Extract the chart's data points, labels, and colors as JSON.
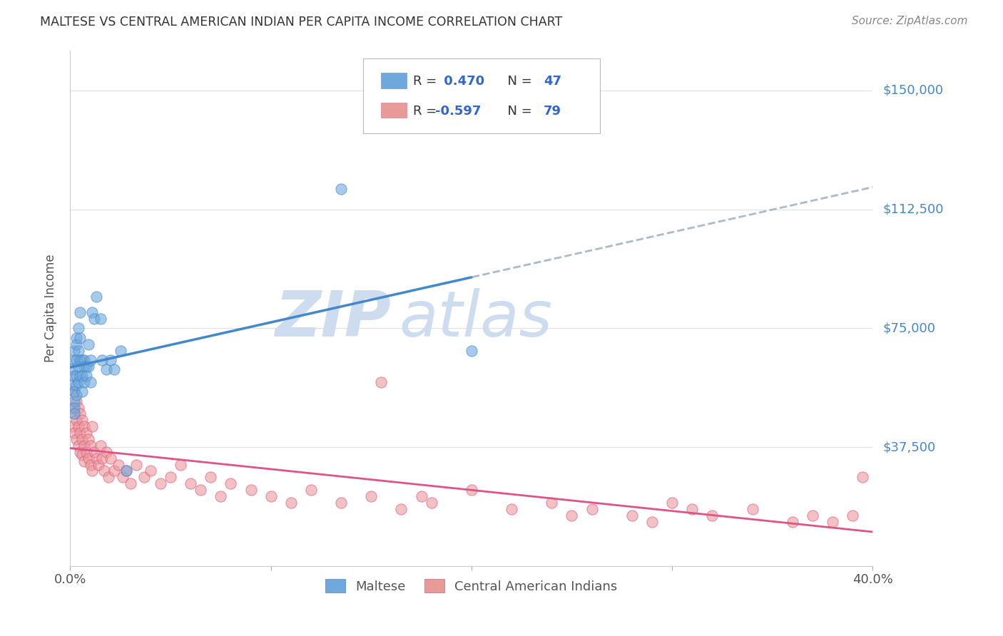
{
  "title": "MALTESE VS CENTRAL AMERICAN INDIAN PER CAPITA INCOME CORRELATION CHART",
  "source": "Source: ZipAtlas.com",
  "ylabel": "Per Capita Income",
  "xlim": [
    0.0,
    0.4
  ],
  "ylim": [
    0,
    162500
  ],
  "yticks": [
    0,
    37500,
    75000,
    112500,
    150000
  ],
  "ytick_labels": [
    "",
    "$37,500",
    "$75,000",
    "$112,500",
    "$150,000"
  ],
  "blue_color": "#6fa8dc",
  "pink_color": "#ea9999",
  "blue_line_color": "#4488cc",
  "pink_line_color": "#dd5588",
  "dashed_line_color": "#aabbcc",
  "background_color": "#ffffff",
  "grid_color": "#e0e0e0",
  "watermark_color": "#cddcee",
  "maltese_x": [
    0.001,
    0.001,
    0.002,
    0.002,
    0.002,
    0.002,
    0.002,
    0.002,
    0.002,
    0.003,
    0.003,
    0.003,
    0.003,
    0.003,
    0.003,
    0.004,
    0.004,
    0.004,
    0.004,
    0.005,
    0.005,
    0.005,
    0.005,
    0.006,
    0.006,
    0.006,
    0.007,
    0.007,
    0.007,
    0.008,
    0.008,
    0.009,
    0.009,
    0.01,
    0.01,
    0.011,
    0.012,
    0.013,
    0.015,
    0.016,
    0.018,
    0.02,
    0.022,
    0.025,
    0.028,
    0.135,
    0.2
  ],
  "maltese_y": [
    62000,
    57000,
    68000,
    65000,
    60000,
    55000,
    52000,
    50000,
    48000,
    72000,
    70000,
    65000,
    60000,
    57000,
    54000,
    75000,
    68000,
    63000,
    58000,
    80000,
    72000,
    65000,
    60000,
    65000,
    60000,
    55000,
    65000,
    63000,
    58000,
    63000,
    60000,
    70000,
    63000,
    65000,
    58000,
    80000,
    78000,
    85000,
    78000,
    65000,
    62000,
    65000,
    62000,
    68000,
    30000,
    119000,
    68000
  ],
  "cai_x": [
    0.001,
    0.001,
    0.002,
    0.002,
    0.002,
    0.003,
    0.003,
    0.003,
    0.004,
    0.004,
    0.004,
    0.005,
    0.005,
    0.005,
    0.006,
    0.006,
    0.006,
    0.007,
    0.007,
    0.007,
    0.008,
    0.008,
    0.009,
    0.009,
    0.01,
    0.01,
    0.011,
    0.011,
    0.012,
    0.013,
    0.014,
    0.015,
    0.016,
    0.017,
    0.018,
    0.019,
    0.02,
    0.022,
    0.024,
    0.026,
    0.028,
    0.03,
    0.033,
    0.037,
    0.04,
    0.045,
    0.05,
    0.055,
    0.06,
    0.065,
    0.07,
    0.075,
    0.08,
    0.09,
    0.1,
    0.11,
    0.12,
    0.135,
    0.15,
    0.165,
    0.18,
    0.2,
    0.22,
    0.24,
    0.26,
    0.28,
    0.3,
    0.32,
    0.34,
    0.36,
    0.37,
    0.38,
    0.39,
    0.175,
    0.155,
    0.25,
    0.29,
    0.31,
    0.395
  ],
  "cai_y": [
    50000,
    44000,
    55000,
    48000,
    42000,
    52000,
    46000,
    40000,
    50000,
    44000,
    38000,
    48000,
    42000,
    36000,
    46000,
    40000,
    35000,
    44000,
    38000,
    33000,
    42000,
    36000,
    40000,
    34000,
    38000,
    32000,
    44000,
    30000,
    36000,
    34000,
    32000,
    38000,
    34000,
    30000,
    36000,
    28000,
    34000,
    30000,
    32000,
    28000,
    30000,
    26000,
    32000,
    28000,
    30000,
    26000,
    28000,
    32000,
    26000,
    24000,
    28000,
    22000,
    26000,
    24000,
    22000,
    20000,
    24000,
    20000,
    22000,
    18000,
    20000,
    24000,
    18000,
    20000,
    18000,
    16000,
    20000,
    16000,
    18000,
    14000,
    16000,
    14000,
    16000,
    22000,
    58000,
    16000,
    14000,
    18000,
    28000
  ]
}
